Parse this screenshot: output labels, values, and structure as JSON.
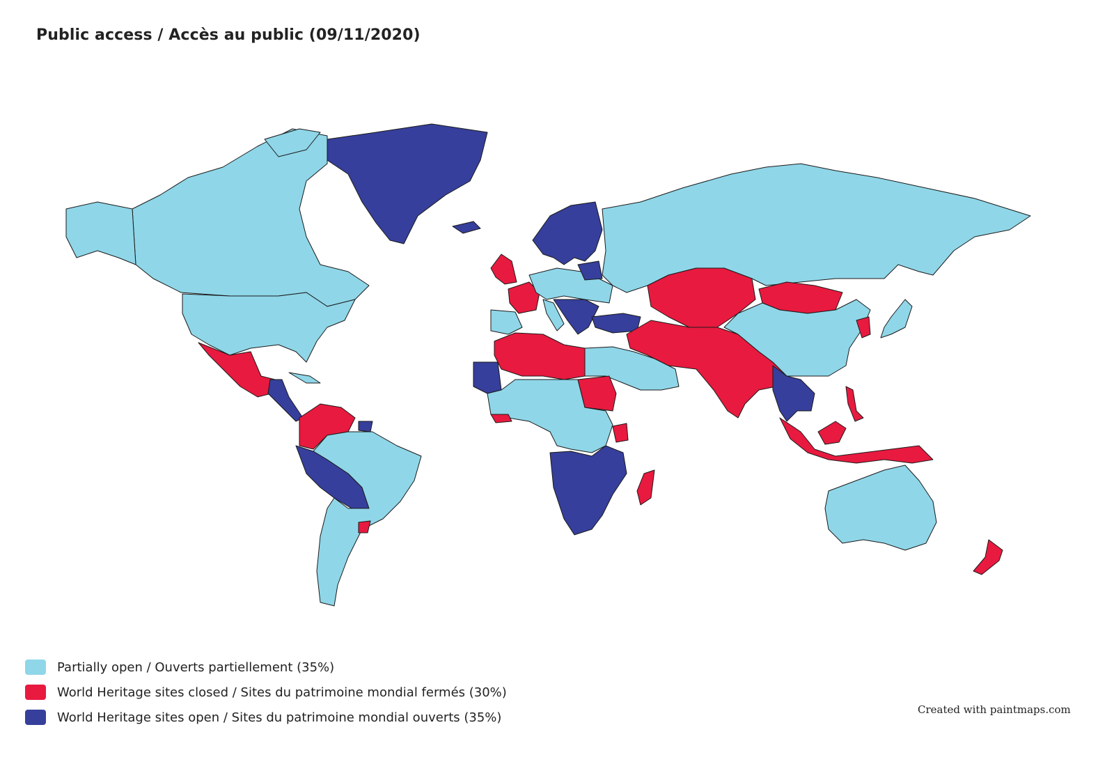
{
  "title": "Public access / Accès au public (09/11/2020)",
  "colors": {
    "partial": "#8fd6e8",
    "closed": "#e81a3f",
    "open": "#363f9b",
    "nodata": "#f0f0f0"
  },
  "legend": [
    {
      "label": "Partially open / Ouverts partiellement (35%)",
      "color": "#8fd6e8"
    },
    {
      "label": "World Heritage sites closed / Sites du patrimoine mondial fermés (30%)",
      "color": "#e81a3f"
    },
    {
      "label": "World Heritage sites open / Sites du patrimoine mondial ouverts (35%)",
      "color": "#363f9b"
    }
  ],
  "credit": "Created with paintmaps.com",
  "regions": [
    {
      "name": "Canada",
      "status": "partial"
    },
    {
      "name": "United States",
      "status": "partial"
    },
    {
      "name": "Greenland",
      "status": "open"
    },
    {
      "name": "Mexico",
      "status": "closed"
    },
    {
      "name": "Central America",
      "status": "open"
    },
    {
      "name": "Venezuela / Colombia",
      "status": "closed"
    },
    {
      "name": "Peru / Bolivia / Paraguay",
      "status": "open"
    },
    {
      "name": "Brazil / Argentina / Chile",
      "status": "partial"
    },
    {
      "name": "Uruguay",
      "status": "closed"
    },
    {
      "name": "Nordic countries",
      "status": "open"
    },
    {
      "name": "United Kingdom / Ireland",
      "status": "closed"
    },
    {
      "name": "France",
      "status": "closed"
    },
    {
      "name": "Central Europe",
      "status": "partial"
    },
    {
      "name": "Balkans",
      "status": "open"
    },
    {
      "name": "Turkey",
      "status": "open"
    },
    {
      "name": "Russia",
      "status": "partial"
    },
    {
      "name": "Kazakhstan / Central Asia / Iran / Pakistan / India",
      "status": "closed"
    },
    {
      "name": "Mongolia",
      "status": "closed"
    },
    {
      "name": "China",
      "status": "partial"
    },
    {
      "name": "Japan",
      "status": "partial"
    },
    {
      "name": "Southeast Asia mainland",
      "status": "open"
    },
    {
      "name": "Indonesia / Philippines / Papua New Guinea",
      "status": "closed"
    },
    {
      "name": "Australia",
      "status": "partial"
    },
    {
      "name": "New Zealand",
      "status": "closed"
    },
    {
      "name": "North Africa",
      "status": "closed"
    },
    {
      "name": "Egypt / Arabia",
      "status": "partial"
    },
    {
      "name": "West Africa",
      "status": "open"
    },
    {
      "name": "Central Africa",
      "status": "partial"
    },
    {
      "name": "Sudan",
      "status": "closed"
    },
    {
      "name": "Southern Africa",
      "status": "open"
    },
    {
      "name": "Madagascar",
      "status": "closed"
    }
  ]
}
